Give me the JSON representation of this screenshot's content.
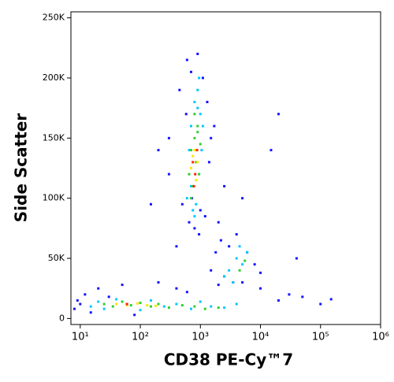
{
  "chart_data": {
    "type": "scatter",
    "x_label": "CD38 PE-Cy™7",
    "y_label": "Side Scatter",
    "xscale": "log",
    "xlim": [
      7,
      1000000
    ],
    "ylim": [
      -5000,
      255000
    ],
    "xticks": [
      {
        "value": 10,
        "label": "10¹"
      },
      {
        "value": 100,
        "label": "10²"
      },
      {
        "value": 1000,
        "label": "10³"
      },
      {
        "value": 10000,
        "label": "10⁴"
      },
      {
        "value": 100000,
        "label": "10⁵"
      },
      {
        "value": 1000000,
        "label": "10⁶"
      }
    ],
    "yticks": [
      0,
      {
        "value": 50000,
        "label": "50K"
      },
      {
        "value": 100000,
        "label": "100K"
      },
      {
        "value": 150000,
        "label": "150K"
      },
      {
        "value": 200000,
        "label": "200K"
      },
      {
        "value": 250000,
        "label": "250K"
      }
    ],
    "series": [
      {
        "color": "#1414ff",
        "x": [
          600,
          450,
          700,
          900,
          1100,
          1300,
          800,
          650,
          500,
          1500,
          1200,
          950,
          720,
          580,
          1000,
          1400,
          1700,
          300,
          150,
          2500,
          8,
          9,
          10,
          12,
          15,
          20,
          30,
          50,
          80,
          200,
          400,
          600,
          2000,
          5000,
          10000,
          20000,
          30000,
          50000,
          100000,
          150000,
          1500,
          1800,
          2200,
          3000,
          4000,
          6000,
          8000,
          10000,
          3500,
          2500,
          300,
          200,
          400,
          5000,
          20000,
          15000,
          40000,
          2000
        ],
        "y": [
          215000,
          190000,
          205000,
          220000,
          200000,
          180000,
          75000,
          80000,
          95000,
          150000,
          85000,
          70000,
          100000,
          170000,
          90000,
          130000,
          160000,
          150000,
          95000,
          110000,
          8000,
          15000,
          12000,
          20000,
          5000,
          25000,
          18000,
          28000,
          3000,
          30000,
          25000,
          22000,
          28000,
          30000,
          25000,
          15000,
          20000,
          18000,
          12000,
          16000,
          40000,
          55000,
          65000,
          60000,
          70000,
          55000,
          45000,
          38000,
          30000,
          35000,
          120000,
          140000,
          60000,
          100000,
          170000,
          140000,
          50000,
          80000
        ]
      },
      {
        "color": "#00c8ff",
        "x": [
          600,
          700,
          800,
          900,
          1000,
          1100,
          750,
          850,
          650,
          950,
          1050,
          700,
          800,
          900,
          15,
          20,
          25,
          40,
          60,
          100,
          150,
          250,
          400,
          700,
          1000,
          1500,
          2500,
          4000,
          3000,
          4000,
          5000,
          6000,
          2500,
          3500,
          4500
        ],
        "y": [
          100000,
          110000,
          180000,
          190000,
          170000,
          160000,
          90000,
          95000,
          140000,
          200000,
          140000,
          160000,
          85000,
          175000,
          10000,
          14000,
          8000,
          16000,
          12000,
          7000,
          15000,
          10000,
          12000,
          8000,
          14000,
          10000,
          9000,
          12000,
          40000,
          50000,
          45000,
          55000,
          35000,
          30000,
          60000
        ]
      },
      {
        "color": "#32cd32",
        "x": [
          650,
          700,
          750,
          800,
          850,
          900,
          950,
          1000,
          700,
          800,
          900,
          25,
          35,
          50,
          70,
          100,
          150,
          200,
          300,
          500,
          800,
          1200,
          2000,
          4500,
          5500
        ],
        "y": [
          120000,
          140000,
          110000,
          150000,
          130000,
          160000,
          120000,
          145000,
          100000,
          170000,
          155000,
          12000,
          10000,
          14000,
          11000,
          13000,
          10000,
          12000,
          9000,
          11000,
          10000,
          8000,
          9000,
          40000,
          48000
        ]
      },
      {
        "color": "#ffe600",
        "x": [
          700,
          750,
          800,
          850,
          900,
          40,
          60,
          90,
          130,
          180
        ],
        "y": [
          125000,
          135000,
          140000,
          115000,
          130000,
          12000,
          11000,
          12500,
          11000,
          10500
        ]
      },
      {
        "color": "#ff2000",
        "x": [
          750,
          820,
          880,
          780,
          60
        ],
        "y": [
          130000,
          120000,
          140000,
          110000,
          12000
        ]
      }
    ]
  }
}
